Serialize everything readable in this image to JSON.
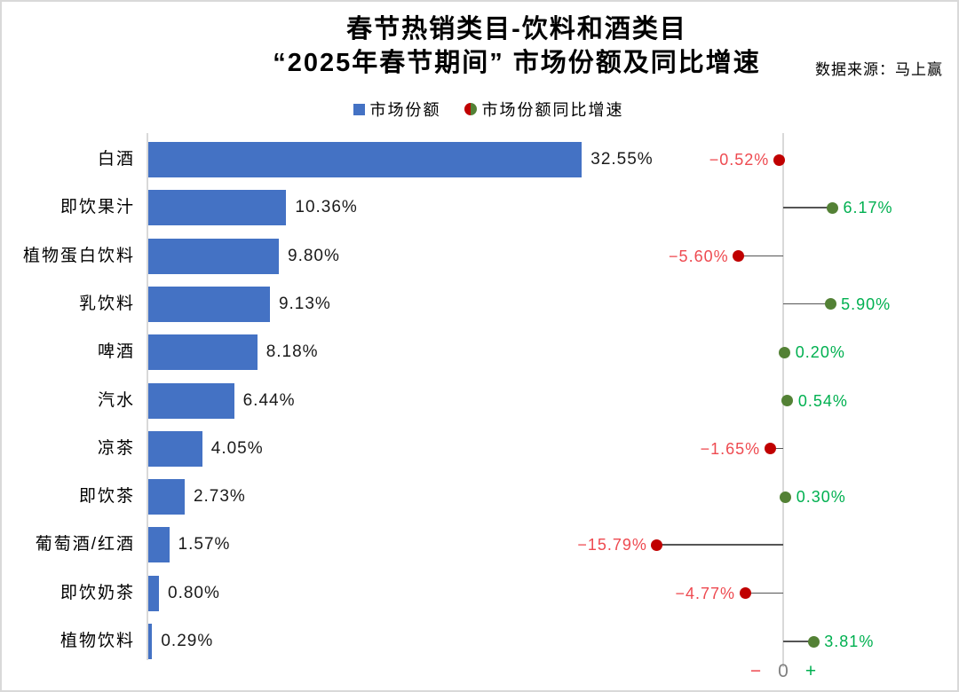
{
  "header": {
    "title_line1": "春节热销类目-饮料和酒类目",
    "title_line2": "“2025年春节期间” 市场份额及同比增速",
    "source": "数据来源：马上赢"
  },
  "legend": {
    "share_label": "市场份额",
    "growth_label": "市场份额同比增速"
  },
  "axis": {
    "minus": "−",
    "zero": "0",
    "plus": "+"
  },
  "colors": {
    "bar_blue": "#4472C4",
    "growth_dot_positive": "#538135",
    "growth_dot_negative": "#C00000",
    "growth_text_positive": "#00B050",
    "growth_text_negative": "#EE4A50",
    "stem_gray": "#555555",
    "axis_gray": "#D9D9D9",
    "zero_label_gray": "#808080",
    "value_text": "#1a1a1a"
  },
  "chart_data": {
    "type": "bar",
    "orientation": "horizontal",
    "title": "春节热销类目-饮料和酒类目 “2025年春节期间” 市场份额及同比增速",
    "legend_position": "top",
    "grid": false,
    "categories": [
      "白酒",
      "即饮果汁",
      "植物蛋白饮料",
      "乳饮料",
      "啤酒",
      "汽水",
      "凉茶",
      "即饮茶",
      "葡萄酒/红酒",
      "即饮奶茶",
      "植物饮料"
    ],
    "series": [
      {
        "name": "市场份额",
        "unit": "%",
        "style": "bar",
        "values": [
          32.55,
          10.36,
          9.8,
          9.13,
          8.18,
          6.44,
          4.05,
          2.73,
          1.57,
          0.8,
          0.29
        ]
      },
      {
        "name": "市场份额同比增速",
        "unit": "%",
        "style": "lollipop",
        "values": [
          -0.52,
          6.17,
          -5.6,
          5.9,
          0.2,
          0.54,
          -1.65,
          0.3,
          -15.79,
          -4.77,
          3.81
        ]
      }
    ],
    "share_axis_range": [
      0,
      35
    ],
    "growth_axis_range": [
      -17,
      7
    ]
  }
}
